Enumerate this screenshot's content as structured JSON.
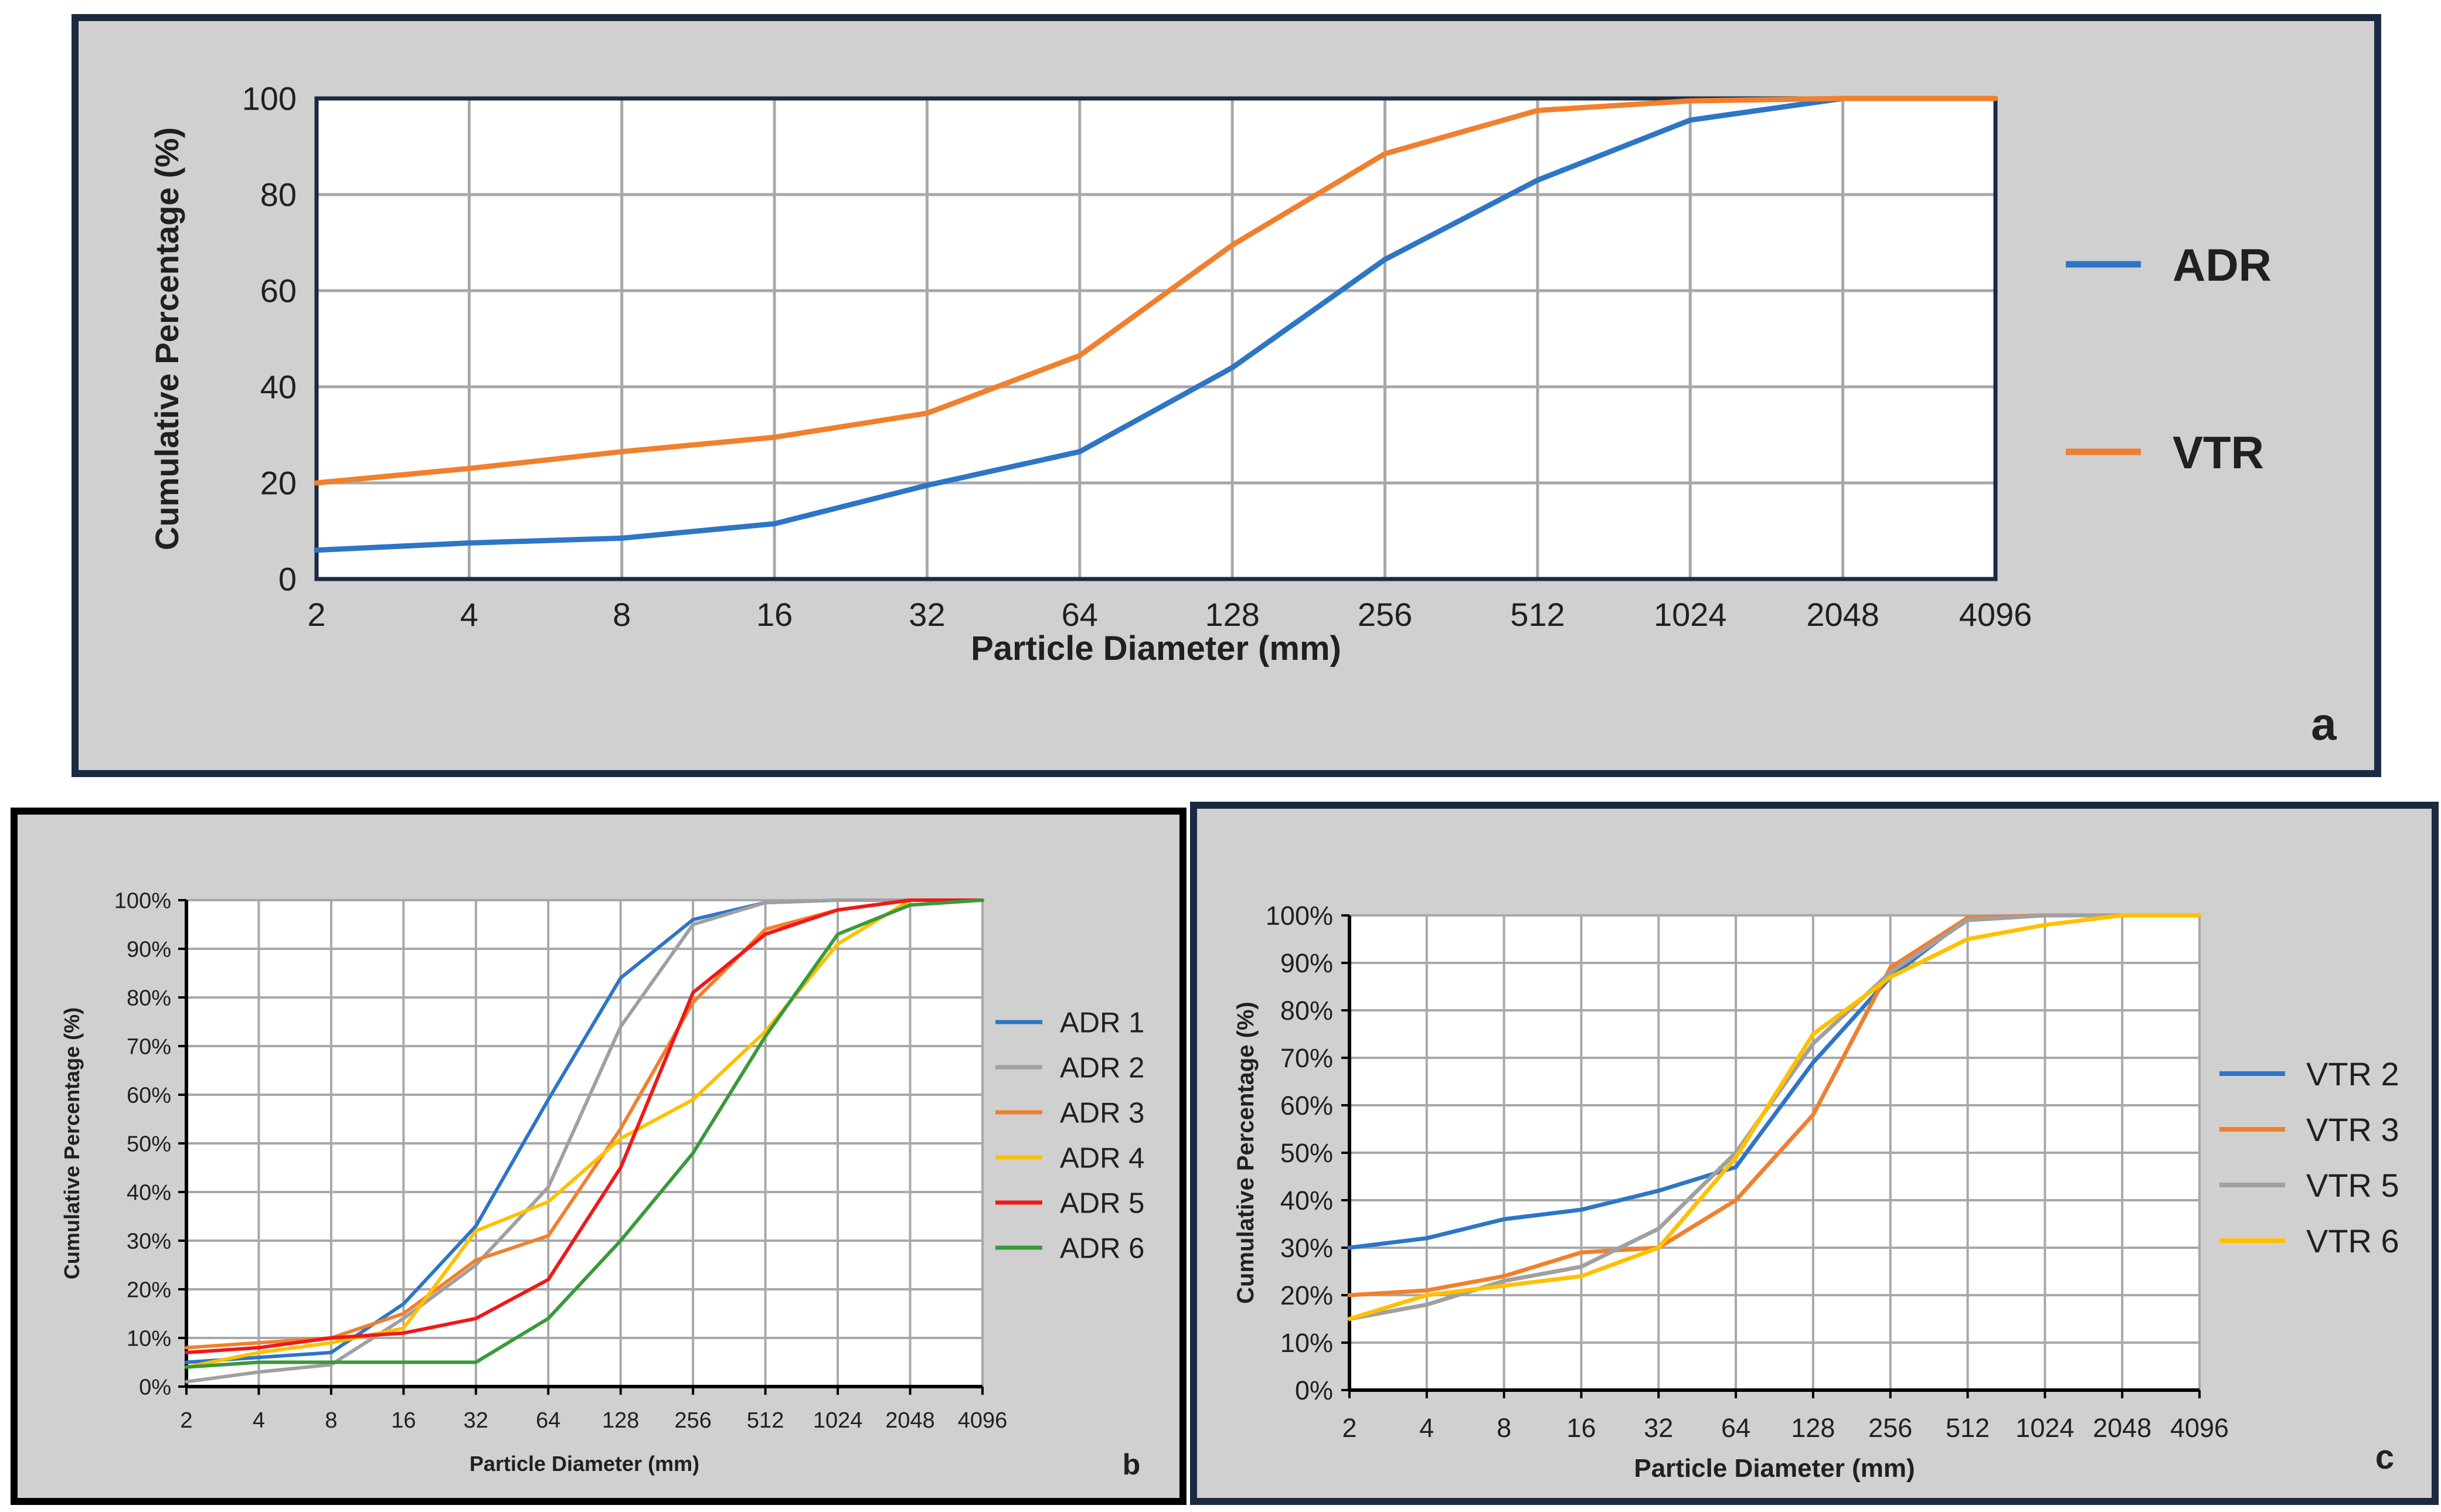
{
  "chart_data": [
    {
      "type": "line",
      "panel_label": "a",
      "title": "",
      "xlabel": "Particle Diameter (mm)",
      "ylabel": "Cumulative Percentage (%)",
      "x_scale": "log2",
      "categories": [
        "2",
        "4",
        "8",
        "16",
        "32",
        "64",
        "128",
        "256",
        "512",
        "1024",
        "2048",
        "4096"
      ],
      "ylim": [
        0,
        100
      ],
      "yticks": [
        "0",
        "20",
        "40",
        "60",
        "80",
        "100"
      ],
      "legend_position": "right",
      "series": [
        {
          "name": "ADR",
          "color": "#2e75c6",
          "values": [
            6,
            7.5,
            8.5,
            11.5,
            19.5,
            26.5,
            44,
            66.5,
            83,
            95.5,
            100,
            100
          ]
        },
        {
          "name": "VTR",
          "color": "#f0802e",
          "values": [
            20,
            23,
            26.5,
            29.5,
            34.5,
            46.5,
            69.5,
            88.5,
            97.5,
            99.5,
            100,
            100
          ]
        }
      ]
    },
    {
      "type": "line",
      "panel_label": "b",
      "title": "",
      "xlabel": "Particle Diameter (mm)",
      "ylabel": "Cumulative Percentage (%)",
      "x_scale": "log2",
      "categories": [
        "2",
        "4",
        "8",
        "16",
        "32",
        "64",
        "128",
        "256",
        "512",
        "1024",
        "2048",
        "4096"
      ],
      "ylim": [
        0,
        100
      ],
      "yticks": [
        "0%",
        "10%",
        "20%",
        "30%",
        "40%",
        "50%",
        "60%",
        "70%",
        "80%",
        "90%",
        "100%"
      ],
      "legend_position": "right",
      "series": [
        {
          "name": "ADR 1",
          "color": "#2e75c6",
          "values": [
            5,
            6,
            7,
            17,
            33,
            59,
            84,
            96,
            99.5,
            100,
            100,
            100
          ]
        },
        {
          "name": "ADR 2",
          "color": "#a0a0a0",
          "values": [
            1,
            3,
            4.5,
            14,
            25,
            41,
            74,
            95,
            99.5,
            100,
            100,
            100
          ]
        },
        {
          "name": "ADR 3",
          "color": "#f0802e",
          "values": [
            8,
            9,
            10,
            15,
            26,
            31,
            53,
            79,
            94,
            98,
            100,
            100
          ]
        },
        {
          "name": "ADR 4",
          "color": "#ffc000",
          "values": [
            4,
            7,
            9,
            12,
            32,
            38,
            51,
            59,
            73,
            91,
            100,
            100
          ]
        },
        {
          "name": "ADR 5",
          "color": "#f01818",
          "values": [
            7,
            8,
            10,
            11,
            14,
            22,
            45,
            81,
            93,
            98,
            100,
            100
          ]
        },
        {
          "name": "ADR 6",
          "color": "#3a9a3a",
          "values": [
            4,
            5,
            5,
            5,
            5,
            14,
            30,
            48,
            72,
            93,
            99,
            100
          ]
        }
      ]
    },
    {
      "type": "line",
      "panel_label": "c",
      "title": "",
      "xlabel": "Particle Diameter (mm)",
      "ylabel": "Cumulative Percentage (%)",
      "x_scale": "log2",
      "categories": [
        "2",
        "4",
        "8",
        "16",
        "32",
        "64",
        "128",
        "256",
        "512",
        "1024",
        "2048",
        "4096"
      ],
      "ylim": [
        0,
        100
      ],
      "yticks": [
        "0%",
        "10%",
        "20%",
        "30%",
        "40%",
        "50%",
        "60%",
        "70%",
        "80%",
        "90%",
        "100%"
      ],
      "legend_position": "right",
      "series": [
        {
          "name": "VTR 2",
          "color": "#2e75c6",
          "values": [
            30,
            32,
            36,
            38,
            42,
            47,
            69,
            87,
            99.5,
            100,
            100,
            100
          ]
        },
        {
          "name": "VTR 3",
          "color": "#f0802e",
          "values": [
            20,
            21,
            24,
            29,
            30,
            40,
            58,
            89,
            99.5,
            100,
            100,
            100
          ]
        },
        {
          "name": "VTR 5",
          "color": "#a0a0a0",
          "values": [
            15,
            18,
            23,
            26,
            34,
            50,
            73,
            88,
            99,
            100,
            100,
            100
          ]
        },
        {
          "name": "VTR 6",
          "color": "#ffc000",
          "values": [
            15,
            20,
            22,
            24,
            30,
            49,
            75,
            87,
            95,
            98,
            100,
            100
          ]
        }
      ]
    }
  ]
}
